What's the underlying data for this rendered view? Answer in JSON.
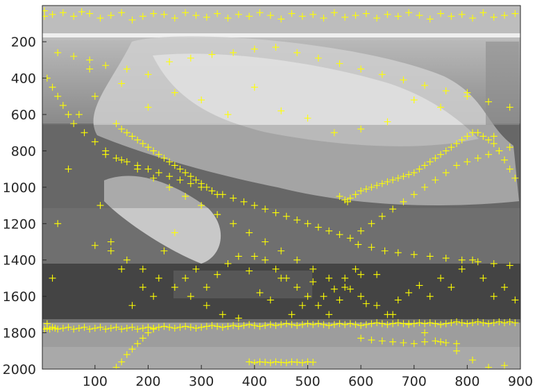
{
  "chart_data": {
    "type": "scatter",
    "title": "",
    "xlabel": "",
    "ylabel": "",
    "xlim": [
      1,
      900
    ],
    "ylim": [
      2000,
      1
    ],
    "y_reversed": true,
    "grid": false,
    "legend": null,
    "x_ticks": [
      100,
      200,
      300,
      400,
      500,
      600,
      700,
      800,
      900
    ],
    "y_ticks": [
      200,
      400,
      600,
      800,
      1000,
      1200,
      1400,
      1600,
      1800,
      2000
    ],
    "background_image": "grayscale-street-scene-with-mural",
    "series": [
      {
        "marker": "plus",
        "color": "#ffff00",
        "x": [
          5,
          20,
          40,
          60,
          75,
          90,
          110,
          130,
          150,
          170,
          190,
          210,
          230,
          250,
          270,
          290,
          310,
          330,
          350,
          370,
          390,
          410,
          430,
          450,
          470,
          490,
          510,
          530,
          550,
          570,
          590,
          610,
          630,
          650,
          670,
          690,
          710,
          730,
          750,
          770,
          790,
          810,
          830,
          850,
          870,
          890,
          30,
          60,
          90,
          120,
          160,
          200,
          240,
          280,
          320,
          360,
          400,
          440,
          480,
          520,
          560,
          600,
          640,
          680,
          720,
          760,
          800,
          840,
          880,
          140,
          150,
          160,
          170,
          180,
          190,
          200,
          210,
          220,
          230,
          240,
          250,
          260,
          270,
          280,
          290,
          300,
          310,
          320,
          330,
          120,
          140,
          160,
          180,
          200,
          220,
          240,
          260,
          280,
          300,
          320,
          340,
          360,
          380,
          400,
          420,
          440,
          460,
          480,
          500,
          520,
          540,
          560,
          580,
          600,
          620,
          640,
          660,
          680,
          700,
          720,
          740,
          760,
          780,
          800,
          820,
          840,
          860,
          880,
          390,
          400,
          410,
          420,
          430,
          440,
          450,
          460,
          470,
          480,
          490,
          500,
          510,
          140,
          150,
          160,
          170,
          180,
          190,
          200,
          210,
          560,
          570,
          575,
          580,
          590,
          600,
          610,
          620,
          630,
          640,
          650,
          660,
          670,
          680,
          690,
          700,
          710,
          720,
          730,
          740,
          750,
          760,
          770,
          780,
          790,
          800,
          810,
          820,
          830,
          840,
          850,
          860,
          870,
          880,
          890,
          5,
          10,
          15,
          20,
          25,
          30,
          40,
          50,
          60,
          70,
          80,
          90,
          100,
          110,
          120,
          130,
          140,
          150,
          160,
          170,
          180,
          190,
          200,
          210,
          220,
          230,
          240,
          250,
          260,
          270,
          280,
          290,
          300,
          310,
          320,
          330,
          340,
          350,
          360,
          370,
          380,
          390,
          400,
          410,
          420,
          430,
          440,
          450,
          460,
          470,
          480,
          490,
          500,
          510,
          520,
          530,
          540,
          550,
          560,
          570,
          580,
          590,
          600,
          610,
          620,
          630,
          640,
          650,
          660,
          670,
          680,
          690,
          700,
          710,
          720,
          730,
          740,
          750,
          760,
          770,
          780,
          790,
          800,
          810,
          820,
          830,
          840,
          850,
          860,
          870,
          880,
          890,
          600,
          620,
          640,
          660,
          680,
          700,
          720,
          740,
          760,
          780,
          400,
          420,
          440,
          460,
          480,
          500,
          520,
          540,
          560,
          580,
          600,
          100,
          130,
          160,
          190,
          220,
          250,
          280,
          310,
          340,
          370,
          10,
          20,
          30,
          40,
          50,
          60,
          80,
          100,
          120,
          150,
          180,
          210,
          240,
          270,
          300,
          330,
          360,
          390,
          420,
          450,
          480,
          510,
          540,
          570,
          600,
          630,
          660,
          690,
          720,
          750,
          780,
          810,
          840,
          870,
          5,
          10,
          20,
          30,
          50,
          70,
          90,
          110,
          130,
          150,
          170,
          190,
          210,
          230,
          250,
          270,
          290,
          310,
          330,
          350,
          370,
          390,
          410,
          430,
          450,
          470,
          490,
          510,
          530,
          550,
          570,
          590,
          610,
          630,
          650,
          670,
          690,
          710,
          730,
          750,
          770,
          790,
          810,
          830,
          850,
          870,
          890,
          100,
          150,
          200,
          250,
          300,
          350,
          400,
          450,
          500,
          550,
          600,
          650,
          700,
          750,
          800,
          850,
          595,
          620,
          645,
          670,
          700,
          730,
          760,
          790,
          820,
          850,
          880
        ],
        "y": [
          30,
          50,
          40,
          60,
          35,
          45,
          70,
          55,
          40,
          80,
          60,
          45,
          50,
          70,
          40,
          55,
          65,
          45,
          70,
          50,
          60,
          40,
          55,
          75,
          45,
          60,
          50,
          70,
          40,
          65,
          55,
          45,
          70,
          50,
          60,
          40,
          55,
          75,
          45,
          60,
          50,
          70,
          40,
          65,
          55,
          45,
          260,
          280,
          300,
          330,
          350,
          380,
          310,
          290,
          270,
          260,
          240,
          230,
          260,
          290,
          320,
          350,
          380,
          410,
          440,
          470,
          500,
          530,
          560,
          650,
          680,
          700,
          720,
          740,
          760,
          780,
          800,
          820,
          840,
          860,
          880,
          900,
          920,
          940,
          960,
          980,
          1000,
          1020,
          1040,
          820,
          840,
          860,
          880,
          900,
          920,
          940,
          960,
          980,
          1000,
          1020,
          1040,
          1060,
          1080,
          1100,
          1120,
          1140,
          1160,
          1180,
          1200,
          1220,
          1240,
          1260,
          1280,
          1240,
          1200,
          1160,
          1120,
          1080,
          1040,
          1000,
          960,
          920,
          880,
          860,
          840,
          820,
          800,
          780,
          1960,
          1965,
          1960,
          1962,
          1965,
          1960,
          1963,
          1965,
          1960,
          1962,
          1965,
          1960,
          1962,
          1990,
          1960,
          1920,
          1890,
          1860,
          1830,
          1800,
          1780,
          1050,
          1070,
          1080,
          1060,
          1040,
          1020,
          1010,
          1000,
          990,
          980,
          970,
          960,
          950,
          940,
          930,
          920,
          900,
          880,
          860,
          840,
          820,
          800,
          780,
          760,
          740,
          720,
          700,
          700,
          720,
          740,
          760,
          800,
          850,
          900,
          950,
          1780,
          1775,
          1780,
          1770,
          1775,
          1780,
          1775,
          1770,
          1780,
          1775,
          1770,
          1780,
          1775,
          1770,
          1780,
          1775,
          1770,
          1780,
          1775,
          1770,
          1780,
          1775,
          1770,
          1775,
          1770,
          1765,
          1770,
          1775,
          1770,
          1765,
          1770,
          1775,
          1770,
          1765,
          1760,
          1765,
          1770,
          1765,
          1760,
          1765,
          1760,
          1755,
          1760,
          1765,
          1760,
          1755,
          1760,
          1755,
          1750,
          1755,
          1760,
          1755,
          1750,
          1755,
          1750,
          1755,
          1760,
          1755,
          1750,
          1755,
          1750,
          1755,
          1760,
          1755,
          1750,
          1745,
          1750,
          1755,
          1750,
          1745,
          1750,
          1755,
          1750,
          1745,
          1750,
          1745,
          1750,
          1755,
          1750,
          1745,
          1740,
          1745,
          1750,
          1745,
          1740,
          1745,
          1750,
          1745,
          1740,
          1745,
          1740,
          1745,
          1830,
          1840,
          1845,
          1850,
          1855,
          1860,
          1850,
          1845,
          1855,
          1860,
          1380,
          1400,
          1450,
          1500,
          1550,
          1600,
          1650,
          1700,
          1620,
          1560,
          1480,
          1320,
          1350,
          1400,
          1450,
          1500,
          1550,
          1600,
          1650,
          1700,
          1720,
          400,
          450,
          500,
          550,
          600,
          650,
          700,
          750,
          800,
          850,
          900,
          950,
          1000,
          1050,
          1100,
          1150,
          1200,
          1250,
          1300,
          1350,
          1400,
          1450,
          1500,
          1550,
          1600,
          1650,
          1700,
          1750,
          1800,
          1850,
          1900,
          1950,
          1990,
          1980,
          60,
          1750,
          1500,
          1200,
          900,
          600,
          350,
          1100,
          1300,
          1450,
          1650,
          1550,
          1600,
          1350,
          1250,
          1500,
          1450,
          1550,
          1480,
          1420,
          1380,
          1460,
          1580,
          1620,
          1500,
          1700,
          1650,
          1520,
          1600,
          1560,
          1500,
          1450,
          1640,
          1480,
          1700,
          1620,
          1580,
          1540,
          1600,
          1500,
          1550,
          1450,
          1400,
          1500,
          1600,
          1550,
          1620,
          500,
          430,
          560,
          480,
          520,
          600,
          450,
          580,
          620,
          700,
          680,
          640,
          520,
          560,
          480,
          720,
          1315,
          1330,
          1350,
          1360,
          1370,
          1380,
          1390,
          1400,
          1410,
          1420,
          1430
        ]
      }
    ]
  }
}
